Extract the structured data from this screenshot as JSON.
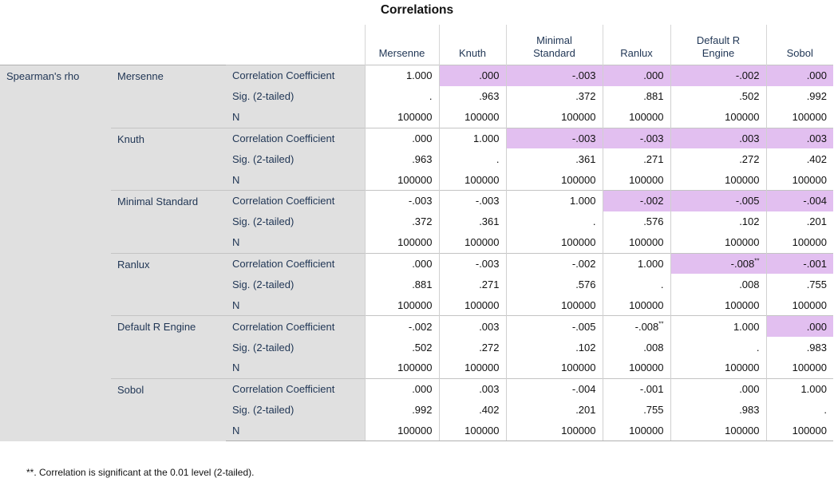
{
  "title": "Correlations",
  "row_group_label": "Spearman's rho",
  "columns": [
    "Mersenne",
    "Knuth",
    "Minimal\nStandard",
    "Ranlux",
    "Default R\nEngine",
    "Sobol"
  ],
  "stat_labels": [
    "Correlation Coefficient",
    "Sig. (2-tailed)",
    "N"
  ],
  "highlight_color": "#e2bff0",
  "rows": [
    {
      "variable": "Mersenne",
      "coef": [
        {
          "v": "1.000"
        },
        {
          "v": ".000",
          "hl": true
        },
        {
          "v": "-.003",
          "hl": true
        },
        {
          "v": ".000",
          "hl": true
        },
        {
          "v": "-.002",
          "hl": true
        },
        {
          "v": ".000",
          "hl": true
        }
      ],
      "sig": [
        ".",
        ".963",
        ".372",
        ".881",
        ".502",
        ".992"
      ],
      "n": [
        "100000",
        "100000",
        "100000",
        "100000",
        "100000",
        "100000"
      ]
    },
    {
      "variable": "Knuth",
      "coef": [
        {
          "v": ".000"
        },
        {
          "v": "1.000"
        },
        {
          "v": "-.003",
          "hl": true
        },
        {
          "v": "-.003",
          "hl": true
        },
        {
          "v": ".003",
          "hl": true
        },
        {
          "v": ".003",
          "hl": true
        }
      ],
      "sig": [
        ".963",
        ".",
        ".361",
        ".271",
        ".272",
        ".402"
      ],
      "n": [
        "100000",
        "100000",
        "100000",
        "100000",
        "100000",
        "100000"
      ]
    },
    {
      "variable": "Minimal Standard",
      "coef": [
        {
          "v": "-.003"
        },
        {
          "v": "-.003"
        },
        {
          "v": "1.000"
        },
        {
          "v": "-.002",
          "hl": true
        },
        {
          "v": "-.005",
          "hl": true
        },
        {
          "v": "-.004",
          "hl": true
        }
      ],
      "sig": [
        ".372",
        ".361",
        ".",
        ".576",
        ".102",
        ".201"
      ],
      "n": [
        "100000",
        "100000",
        "100000",
        "100000",
        "100000",
        "100000"
      ]
    },
    {
      "variable": "Ranlux",
      "coef": [
        {
          "v": ".000"
        },
        {
          "v": "-.003"
        },
        {
          "v": "-.002"
        },
        {
          "v": "1.000"
        },
        {
          "v": "-.008",
          "sup": "**",
          "hl": true
        },
        {
          "v": "-.001",
          "hl": true
        }
      ],
      "sig": [
        ".881",
        ".271",
        ".576",
        ".",
        ".008",
        ".755"
      ],
      "n": [
        "100000",
        "100000",
        "100000",
        "100000",
        "100000",
        "100000"
      ]
    },
    {
      "variable": "Default R Engine",
      "coef": [
        {
          "v": "-.002"
        },
        {
          "v": ".003"
        },
        {
          "v": "-.005"
        },
        {
          "v": "-.008",
          "sup": "**"
        },
        {
          "v": "1.000"
        },
        {
          "v": ".000",
          "hl": true
        }
      ],
      "sig": [
        ".502",
        ".272",
        ".102",
        ".008",
        ".",
        ".983"
      ],
      "n": [
        "100000",
        "100000",
        "100000",
        "100000",
        "100000",
        "100000"
      ]
    },
    {
      "variable": "Sobol",
      "coef": [
        {
          "v": ".000"
        },
        {
          "v": ".003"
        },
        {
          "v": "-.004"
        },
        {
          "v": "-.001"
        },
        {
          "v": ".000"
        },
        {
          "v": "1.000"
        }
      ],
      "sig": [
        ".992",
        ".402",
        ".201",
        ".755",
        ".983",
        "."
      ],
      "n": [
        "100000",
        "100000",
        "100000",
        "100000",
        "100000",
        "100000"
      ]
    }
  ],
  "footnote": "**. Correlation is significant at the 0.01 level (2-tailed)."
}
